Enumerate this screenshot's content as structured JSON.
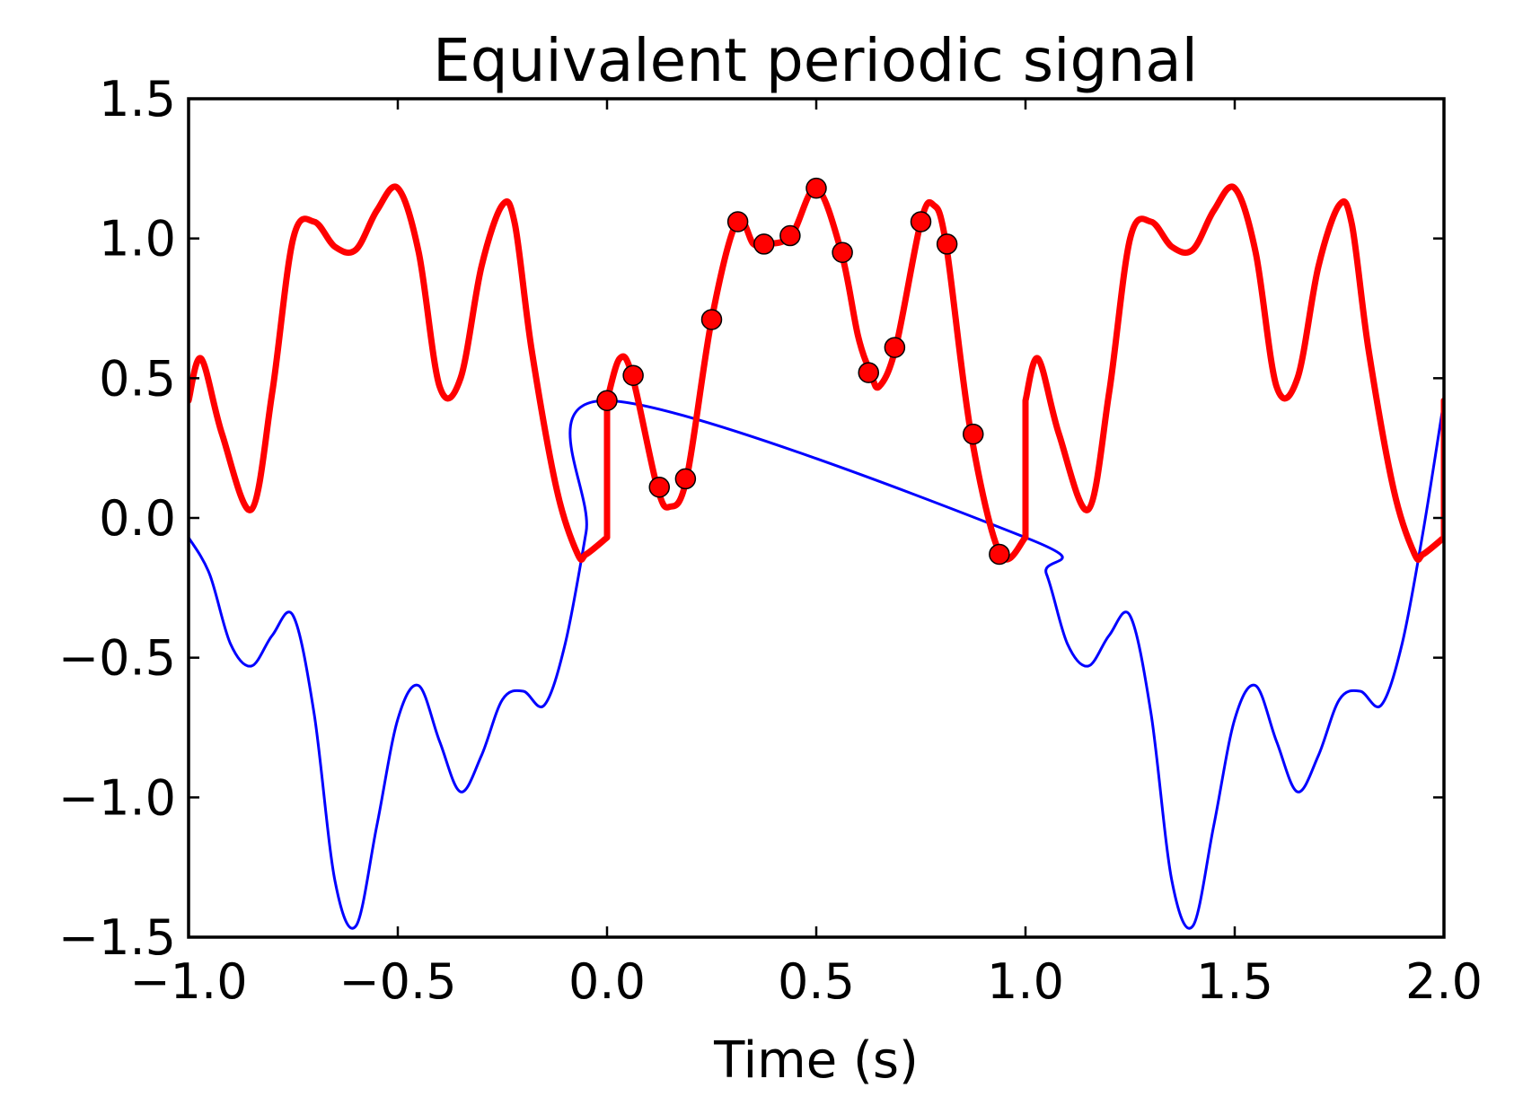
{
  "chart_data": {
    "type": "line",
    "title": "Equivalent periodic signal",
    "xlabel": "Time (s)",
    "ylabel": "",
    "xlim": [
      -1.0,
      2.0
    ],
    "ylim": [
      -1.5,
      1.5
    ],
    "xticks": [
      "−1.0",
      "−0.5",
      "0.0",
      "0.5",
      "1.0",
      "1.5",
      "2.0"
    ],
    "yticks": [
      "−1.5",
      "−1.0",
      "−0.5",
      "0.0",
      "0.5",
      "1.0",
      "1.5"
    ],
    "xtick_values": [
      -1.0,
      -0.5,
      0.0,
      0.5,
      1.0,
      1.5,
      2.0
    ],
    "ytick_values": [
      -1.5,
      -1.0,
      -0.5,
      0.0,
      0.5,
      1.0,
      1.5
    ],
    "grid": false,
    "series": [
      {
        "color": "#0000ff",
        "style": "thin-line",
        "x": [
          -1.0,
          -0.95,
          -0.9,
          -0.85,
          -0.8,
          -0.75,
          -0.7,
          -0.65,
          -0.6,
          -0.55,
          -0.5,
          -0.45,
          -0.4,
          -0.35,
          -0.3,
          -0.25,
          -0.2,
          -0.15,
          -0.1,
          -0.05,
          0.0,
          1.0,
          1.05,
          1.1,
          1.15,
          1.2,
          1.25,
          1.3,
          1.35,
          1.4,
          1.45,
          1.5,
          1.55,
          1.6,
          1.65,
          1.7,
          1.75,
          1.8,
          1.85,
          1.9,
          1.95,
          2.0
        ],
        "y": [
          -0.07,
          -0.2,
          -0.45,
          -0.53,
          -0.42,
          -0.35,
          -0.7,
          -1.3,
          -1.46,
          -1.1,
          -0.72,
          -0.6,
          -0.8,
          -0.98,
          -0.85,
          -0.65,
          -0.62,
          -0.67,
          -0.45,
          -0.05,
          0.42,
          -0.07,
          -0.2,
          -0.45,
          -0.53,
          -0.42,
          -0.35,
          -0.7,
          -1.3,
          -1.46,
          -1.1,
          -0.72,
          -0.6,
          -0.8,
          -0.98,
          -0.85,
          -0.65,
          -0.62,
          -0.67,
          -0.45,
          -0.05,
          0.42
        ]
      },
      {
        "color": "#ff0000",
        "style": "thick-line",
        "x": [
          -1.0,
          -0.97,
          -0.92,
          -0.85,
          -0.8,
          -0.75,
          -0.7,
          -0.65,
          -0.6,
          -0.55,
          -0.5,
          -0.45,
          -0.4,
          -0.35,
          -0.3,
          -0.25,
          -0.22,
          -0.18,
          -0.12,
          -0.07,
          -0.05,
          0.0,
          0.0,
          0.03,
          0.06,
          0.12,
          0.15,
          0.19,
          0.25,
          0.31,
          0.35,
          0.38,
          0.44,
          0.5,
          0.56,
          0.6,
          0.63,
          0.65,
          0.69,
          0.75,
          0.78,
          0.81,
          0.87,
          0.94,
          1.0,
          1.0,
          1.03,
          1.08,
          1.15,
          1.2,
          1.25,
          1.3,
          1.35,
          1.4,
          1.45,
          1.5,
          1.55,
          1.6,
          1.65,
          1.7,
          1.75,
          1.78,
          1.82,
          1.88,
          1.93,
          1.95,
          2.0,
          2.0
        ],
        "y": [
          0.42,
          0.57,
          0.3,
          0.03,
          0.45,
          1.0,
          1.06,
          0.97,
          0.96,
          1.1,
          1.18,
          0.95,
          0.47,
          0.5,
          0.9,
          1.12,
          1.05,
          0.6,
          0.1,
          -0.13,
          -0.13,
          -0.07,
          0.42,
          0.57,
          0.51,
          0.11,
          0.04,
          0.14,
          0.71,
          1.06,
          0.98,
          0.98,
          1.01,
          1.18,
          0.95,
          0.65,
          0.52,
          0.47,
          0.61,
          1.06,
          1.12,
          0.98,
          0.3,
          -0.13,
          -0.07,
          0.42,
          0.57,
          0.3,
          0.03,
          0.45,
          1.0,
          1.06,
          0.97,
          0.96,
          1.1,
          1.18,
          0.95,
          0.47,
          0.5,
          0.9,
          1.12,
          1.05,
          0.6,
          0.1,
          -0.13,
          -0.13,
          -0.07,
          0.42
        ]
      },
      {
        "color": "#ff0000",
        "style": "markers",
        "x": [
          0.0,
          0.0625,
          0.125,
          0.1875,
          0.25,
          0.3125,
          0.375,
          0.4375,
          0.5,
          0.5625,
          0.625,
          0.6875,
          0.75,
          0.8125,
          0.875,
          0.9375
        ],
        "y": [
          0.42,
          0.51,
          0.11,
          0.14,
          0.71,
          1.06,
          0.98,
          1.01,
          1.18,
          0.95,
          0.52,
          0.61,
          1.06,
          0.98,
          0.3,
          -0.13
        ]
      }
    ]
  }
}
